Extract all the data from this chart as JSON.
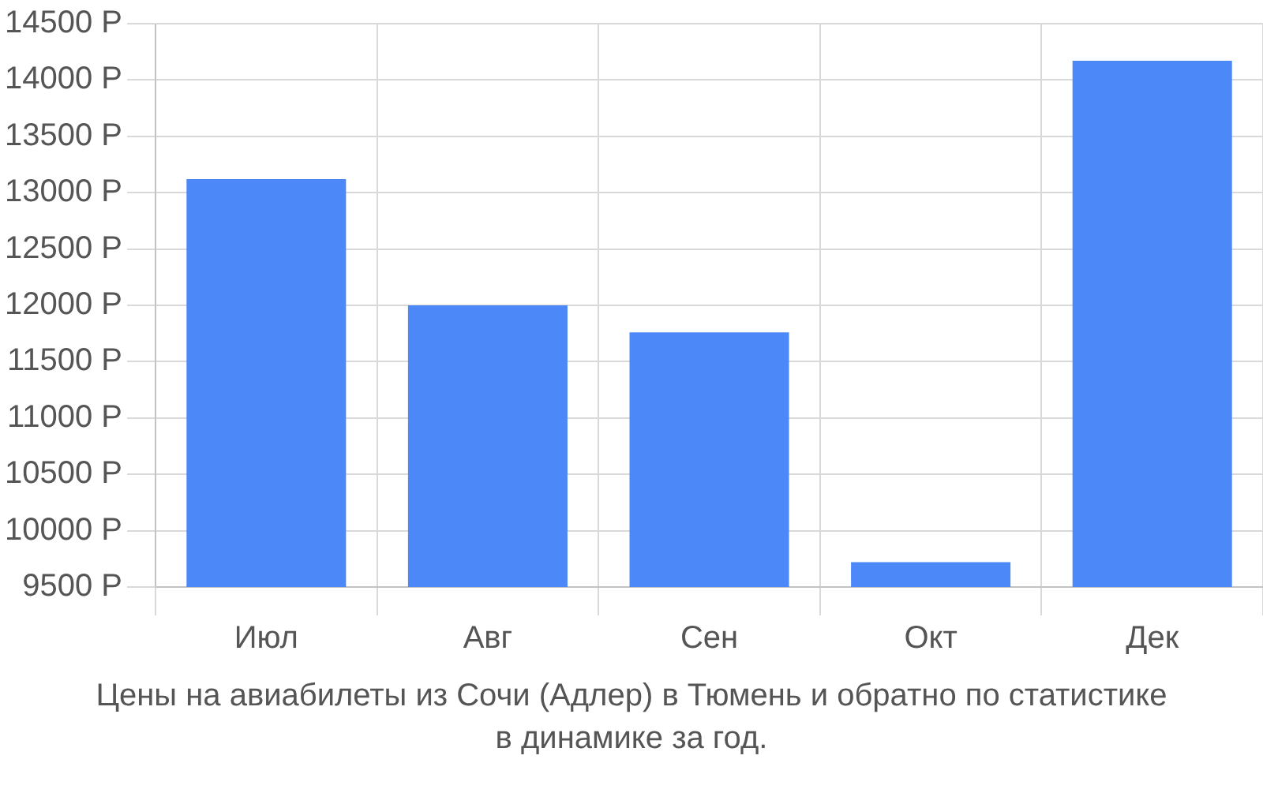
{
  "chart_data": {
    "type": "bar",
    "title": "Цены на авиабилеты из Сочи (Адлер) в Тюмень и обратно по статистике в динамике за год.",
    "categories": [
      "Июл",
      "Авг",
      "Сен",
      "Окт",
      "Дек"
    ],
    "values": [
      13120,
      12000,
      11760,
      9720,
      14170
    ],
    "color": "#4d88f8",
    "ylim": [
      9500,
      14500
    ],
    "yticks": [
      {
        "value": 9500,
        "label": "9500 Р"
      },
      {
        "value": 10000,
        "label": "10000 Р"
      },
      {
        "value": 10500,
        "label": "10500 Р"
      },
      {
        "value": 11000,
        "label": "11000 Р"
      },
      {
        "value": 11500,
        "label": "11500 Р"
      },
      {
        "value": 12000,
        "label": "12000 Р"
      },
      {
        "value": 12500,
        "label": "12500 Р"
      },
      {
        "value": 13000,
        "label": "13000 Р"
      },
      {
        "value": 13500,
        "label": "13500 Р"
      },
      {
        "value": 14000,
        "label": "14000 Р"
      },
      {
        "value": 14500,
        "label": "14500 Р"
      }
    ],
    "grid": true
  }
}
